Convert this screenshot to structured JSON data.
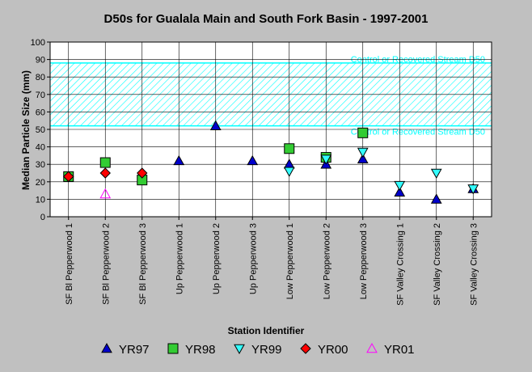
{
  "chart_data": {
    "type": "scatter",
    "title": "D50s for Gualala Main and South Fork Basin - 1997-2001",
    "xlabel": "Station Identifier",
    "ylabel": "Median Particle Size (mm)",
    "ylim": [
      0,
      100
    ],
    "yticks": [
      0,
      10,
      20,
      30,
      40,
      50,
      60,
      70,
      80,
      90,
      100
    ],
    "grid": true,
    "legend_position": "bottom",
    "categories": [
      "SF Bl Pepperwood 1",
      "SF Bl Pepperwood 2",
      "SF Bl Pepperwood 3",
      "Up Pepperwood 1",
      "Up Pepperwood 2",
      "Up Pepperwood 3",
      "Low Pepperwood 1",
      "Low Pepperwood 2",
      "Low Pepperwood 3",
      "SF Valley Crossing 1",
      "SF Valley Crossing 2",
      "SF Valley Crossing 3"
    ],
    "band": {
      "low": 52,
      "high": 88,
      "upper_label": "Control or Recovered Stream D50",
      "lower_label": "Control or Recovered Stream D50",
      "color": "#00ffff"
    },
    "series": [
      {
        "name": "YR97",
        "marker": "triangle-up",
        "color": "#0000cc",
        "values": [
          null,
          null,
          null,
          32,
          52,
          32,
          30,
          30,
          33,
          14,
          10,
          16
        ]
      },
      {
        "name": "YR98",
        "marker": "square",
        "color": "#33cc33",
        "values": [
          23,
          31,
          21,
          null,
          null,
          null,
          39,
          34,
          48,
          null,
          null,
          null
        ]
      },
      {
        "name": "YR99",
        "marker": "triangle-down",
        "color": "#33ffff",
        "values": [
          null,
          null,
          null,
          null,
          null,
          null,
          26,
          33,
          37,
          18,
          25,
          16
        ]
      },
      {
        "name": "YR00",
        "marker": "diamond",
        "color": "#ff0000",
        "values": [
          23,
          25,
          25,
          null,
          null,
          null,
          null,
          null,
          null,
          null,
          null,
          null
        ]
      },
      {
        "name": "YR01",
        "marker": "triangle-up-open",
        "color": "#ff00ff",
        "values": [
          null,
          13,
          null,
          null,
          null,
          null,
          null,
          null,
          null,
          null,
          null,
          null
        ]
      }
    ]
  }
}
